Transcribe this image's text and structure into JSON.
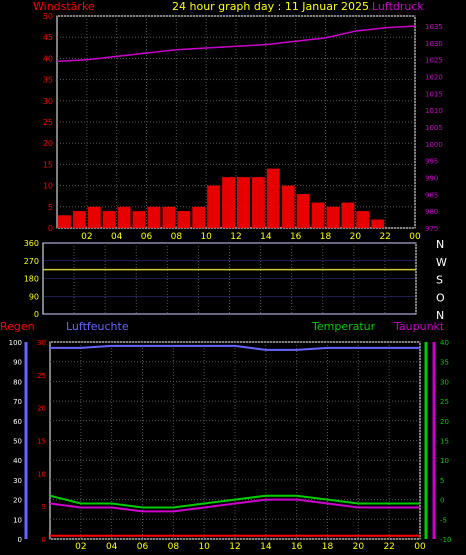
{
  "title": "24 hour graph day : 11 Januar 2025",
  "x_ticks": [
    "02",
    "04",
    "06",
    "08",
    "10",
    "12",
    "14",
    "16",
    "18",
    "20",
    "22",
    "00"
  ],
  "colors": {
    "wind": "#ff0000",
    "gust": "#ffffff",
    "windavg": "#00cc00",
    "pressure": "#cc00cc",
    "direction": "#cccc33",
    "humidity": "#6666ff",
    "temperature": "#00cc00",
    "dewpoint": "#cc00cc",
    "rain": "#ff0000",
    "grid": "#555555",
    "text": "#ffff00",
    "axis": "#ffffff"
  },
  "chart_data": [
    {
      "type": "line",
      "left_label": "Windstärke",
      "right_label": "Luftdruck",
      "ylim_left": [
        0,
        50
      ],
      "ylim_right": [
        975,
        1038
      ],
      "left_ticks": [
        "0",
        "5",
        "10",
        "15",
        "20",
        "25",
        "30",
        "35",
        "40",
        "45",
        "50"
      ],
      "right_ticks": [
        "975",
        "980",
        "985",
        "990",
        "995",
        "1000",
        "1005",
        "1010",
        "1015",
        "1020",
        "1025",
        "1030",
        "1035"
      ],
      "grid": true,
      "series": [
        {
          "name": "Luftdruck",
          "axis": "right",
          "x": [
            0,
            2,
            4,
            6,
            8,
            10,
            12,
            14,
            16,
            18,
            20,
            22,
            24
          ],
          "y": [
            1024.5,
            1025,
            1026,
            1027,
            1028,
            1028.5,
            1029,
            1029.5,
            1030.5,
            1031.5,
            1033.5,
            1034.5,
            1035
          ]
        },
        {
          "name": "Wind",
          "axis": "left",
          "x": [
            0,
            1,
            2,
            3,
            4,
            5,
            6,
            7,
            8,
            9,
            10,
            11,
            12,
            13,
            14,
            15,
            16,
            17,
            18,
            19,
            20,
            21,
            22,
            23,
            24
          ],
          "y": [
            3,
            4,
            5,
            4,
            5,
            4,
            5,
            5,
            4,
            5,
            10,
            12,
            12,
            12,
            14,
            10,
            8,
            6,
            5,
            6,
            4,
            2,
            0,
            0,
            0
          ]
        }
      ]
    },
    {
      "type": "line",
      "right_label_letters": [
        "N",
        "W",
        "S",
        "O",
        "N"
      ],
      "ylim": [
        0,
        360
      ],
      "left_ticks": [
        "0",
        "90",
        "180",
        "270",
        "360"
      ],
      "series": [
        {
          "axis": "left",
          "x": [
            0,
            24
          ],
          "y": [
            225,
            225
          ]
        }
      ]
    },
    {
      "type": "line",
      "left_label": "Regen",
      "series_labels": [
        "Luftfeuchte",
        "Temperatur",
        "Taupunkt"
      ],
      "humidity_ticks": [
        "0",
        "10",
        "20",
        "30",
        "40",
        "50",
        "60",
        "70",
        "80",
        "90",
        "100"
      ],
      "rain_ticks": [
        "0",
        "5",
        "10",
        "15",
        "20",
        "25",
        "30"
      ],
      "temp_ticks": [
        "-10",
        "-5",
        "0",
        "5",
        "10",
        "15",
        "20",
        "25",
        "30",
        "35",
        "40"
      ],
      "ylim_humidity": [
        0,
        100
      ],
      "ylim_rain": [
        0,
        30
      ],
      "ylim_temp": [
        -10,
        40
      ],
      "grid": true,
      "series": [
        {
          "name": "Luftfeuchte",
          "axis": "humidity",
          "x": [
            0,
            2,
            4,
            6,
            8,
            10,
            12,
            13,
            14,
            16,
            18,
            20,
            22,
            24
          ],
          "y": [
            97,
            97,
            98,
            98,
            98,
            98,
            98,
            97,
            96,
            96,
            97,
            97,
            97,
            97
          ]
        },
        {
          "name": "Temperatur",
          "axis": "temp",
          "x": [
            0,
            2,
            4,
            6,
            8,
            10,
            12,
            14,
            16,
            18,
            20,
            22,
            24
          ],
          "y": [
            1,
            -1,
            -1,
            -2,
            -2,
            -1,
            0,
            1,
            1,
            0,
            -1,
            -1,
            -1
          ]
        },
        {
          "name": "Taupunkt",
          "axis": "temp",
          "x": [
            0,
            2,
            4,
            6,
            8,
            10,
            12,
            14,
            16,
            18,
            20,
            22,
            24
          ],
          "y": [
            -1,
            -2,
            -2,
            -3,
            -3,
            -2,
            -1,
            0,
            0,
            -1,
            -2,
            -2,
            -2
          ]
        },
        {
          "name": "Regen",
          "axis": "rain",
          "x": [
            0,
            20,
            24
          ],
          "y": [
            0.5,
            0.5,
            0.5
          ]
        }
      ]
    }
  ]
}
